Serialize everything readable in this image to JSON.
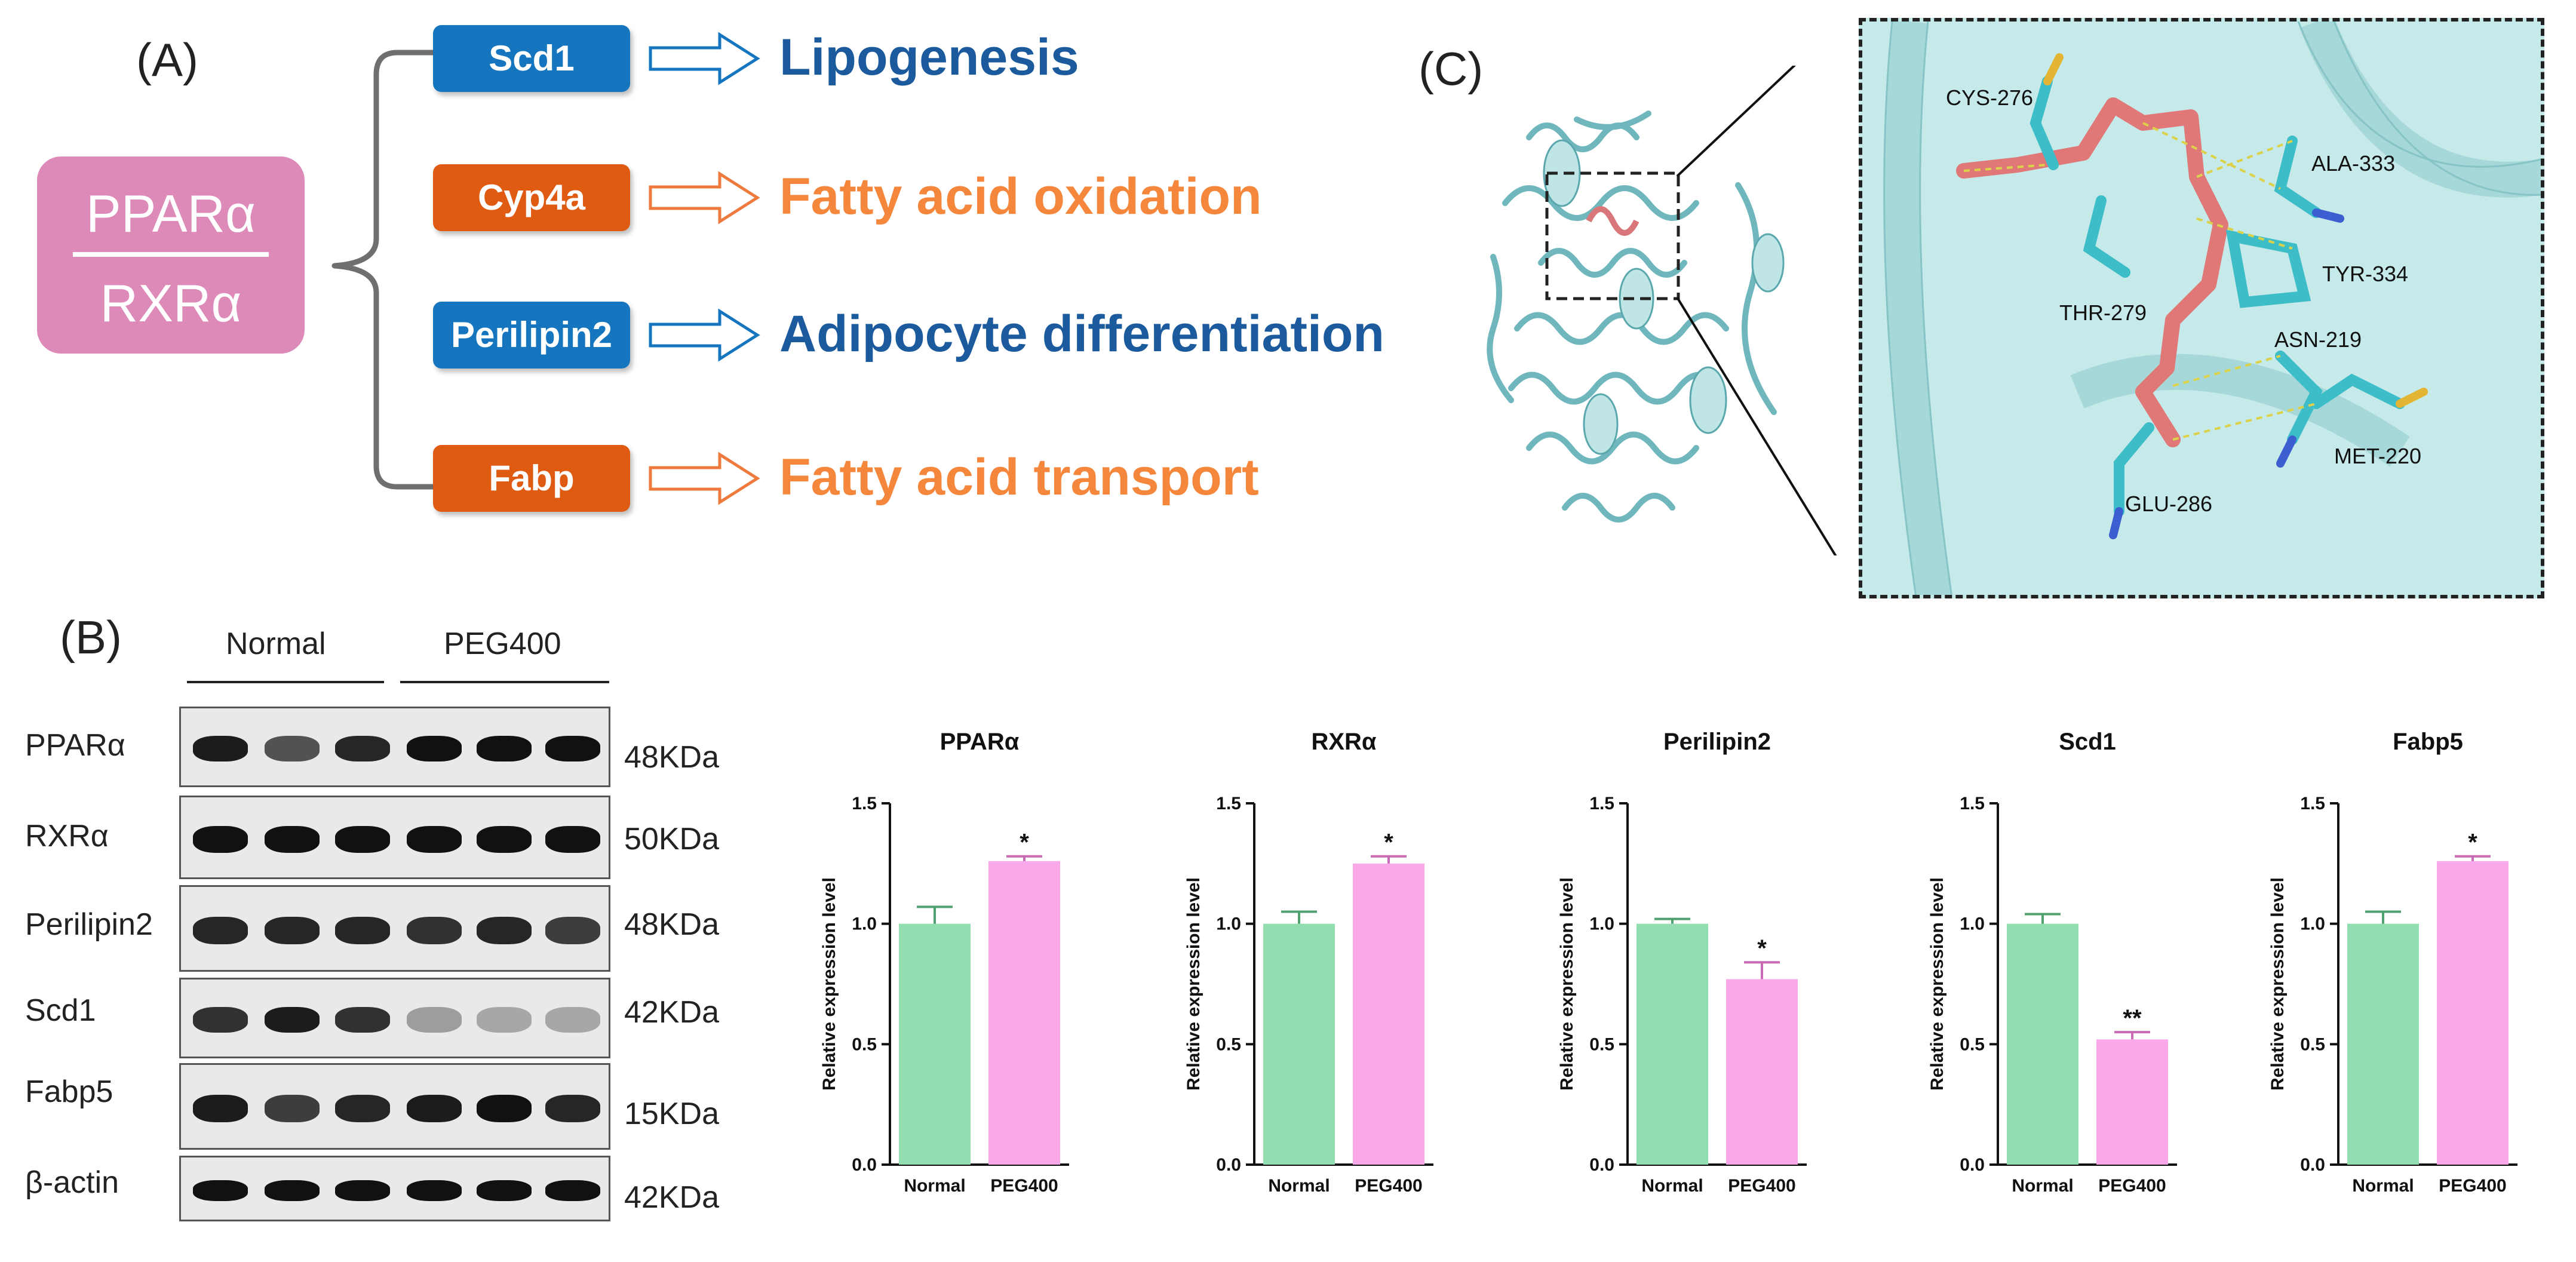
{
  "panel_labels": {
    "a": "(A)",
    "b": "(B)",
    "c": "(C)"
  },
  "panel_a": {
    "complex_top": "PPARα",
    "complex_bottom": "RXRα",
    "targets": [
      {
        "gene": "Scd1",
        "function": "Lipogenesis",
        "color": "#1576bf"
      },
      {
        "gene": "Cyp4a",
        "function": "Fatty acid oxidation",
        "color": "#df5b12"
      },
      {
        "gene": "Perilipin2",
        "function": "Adipocyte differentiation",
        "color": "#1576bf"
      },
      {
        "gene": "Fabp",
        "function": "Fatty acid transport",
        "color": "#df5b12"
      }
    ]
  },
  "panel_b": {
    "groups": [
      "Normal",
      "PEG400"
    ],
    "blots": [
      {
        "protein": "PPARα",
        "size": "48KDa"
      },
      {
        "protein": "RXRα",
        "size": "50KDa"
      },
      {
        "protein": "Perilipin2",
        "size": "48KDa"
      },
      {
        "protein": "Scd1",
        "size": "42KDa"
      },
      {
        "protein": "Fabp5",
        "size": "15KDa"
      },
      {
        "protein": "β-actin",
        "size": "42KDa"
      }
    ]
  },
  "panel_c": {
    "residues": [
      "CYS-276",
      "ALA-333",
      "THR-279",
      "TYR-334",
      "ASN-219",
      "MET-220",
      "GLU-286"
    ]
  },
  "chart_data": [
    {
      "type": "bar",
      "title": "PPARα",
      "categories": [
        "Normal",
        "PEG400"
      ],
      "values": [
        1.0,
        1.26
      ],
      "errors": [
        0.07,
        0.02
      ],
      "sig": [
        "",
        "*"
      ],
      "ylabel": "Relative expression level",
      "ylim": [
        0,
        1.5
      ],
      "yticks": [
        "0.0",
        "0.5",
        "1.0",
        "1.5"
      ],
      "colors": [
        "#92deb0",
        "#f9a9ea"
      ]
    },
    {
      "type": "bar",
      "title": "RXRα",
      "categories": [
        "Normal",
        "PEG400"
      ],
      "values": [
        1.0,
        1.25
      ],
      "errors": [
        0.05,
        0.03
      ],
      "sig": [
        "",
        "*"
      ],
      "ylabel": "Relative expression level",
      "ylim": [
        0,
        1.5
      ],
      "yticks": [
        "0.0",
        "0.5",
        "1.0",
        "1.5"
      ],
      "colors": [
        "#92deb0",
        "#f9a9ea"
      ]
    },
    {
      "type": "bar",
      "title": "Perilipin2",
      "categories": [
        "Normal",
        "PEG400"
      ],
      "values": [
        1.0,
        0.77
      ],
      "errors": [
        0.02,
        0.07
      ],
      "sig": [
        "",
        "*"
      ],
      "ylabel": "Relative expression level",
      "ylim": [
        0,
        1.5
      ],
      "yticks": [
        "0.0",
        "0.5",
        "1.0",
        "1.5"
      ],
      "colors": [
        "#92deb0",
        "#f9a9ea"
      ]
    },
    {
      "type": "bar",
      "title": "Scd1",
      "categories": [
        "Normal",
        "PEG400"
      ],
      "values": [
        1.0,
        0.52
      ],
      "errors": [
        0.04,
        0.03
      ],
      "sig": [
        "",
        "**"
      ],
      "ylabel": "Relative expression level",
      "ylim": [
        0,
        1.5
      ],
      "yticks": [
        "0.0",
        "0.5",
        "1.0",
        "1.5"
      ],
      "colors": [
        "#92deb0",
        "#f9a9ea"
      ]
    },
    {
      "type": "bar",
      "title": "Fabp5",
      "categories": [
        "Normal",
        "PEG400"
      ],
      "values": [
        1.0,
        1.26
      ],
      "errors": [
        0.05,
        0.02
      ],
      "sig": [
        "",
        "*"
      ],
      "ylabel": "Relative expression level",
      "ylim": [
        0,
        1.5
      ],
      "yticks": [
        "0.0",
        "0.5",
        "1.0",
        "1.5"
      ],
      "colors": [
        "#92deb0",
        "#f9a9ea"
      ]
    }
  ]
}
